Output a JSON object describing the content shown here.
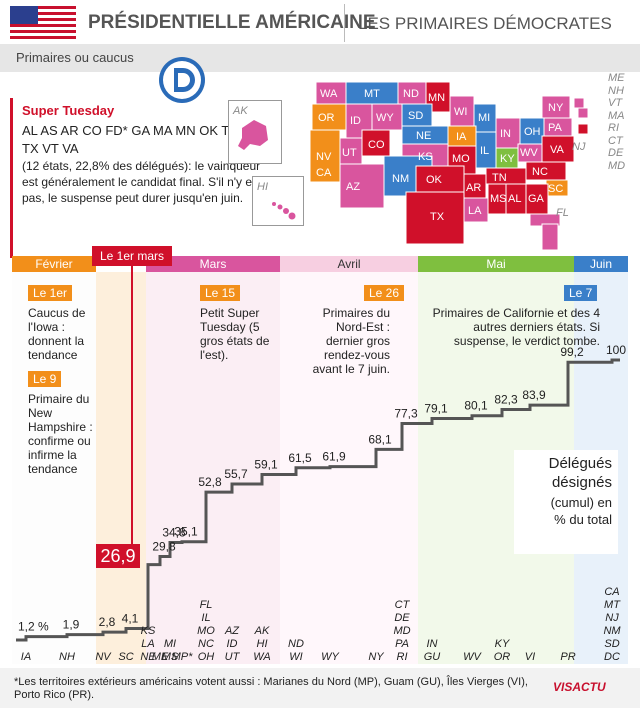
{
  "header": {
    "title": "PRÉSIDENTIELLE AMÉRICAINE",
    "subtitle": "LES PRIMAIRES DÉMOCRATES",
    "subbar": "Primaires ou caucus"
  },
  "super_tuesday": {
    "title": "Super Tuesday",
    "states": "AL AS AR CO FD* GA MA MN OK TN TX VT VA",
    "desc": "(12 états, 22,8% des délégués): le vainqueur est généralement le candidat final. S'il n'y en a pas, le suspense peut durer jusqu'en juin.",
    "date_tag": "Le 1er mars",
    "date_value": "26,9"
  },
  "events": [
    {
      "tag": "Le 1er",
      "text": "Caucus de l'Iowa : donnent la tendance"
    },
    {
      "tag": "Le 9",
      "text": "Primaire du New Hampshire : confirme ou infirme la tendance"
    },
    {
      "tag": "Le 15",
      "text": "Petit Super Tuesday (5 gros états de l'est)."
    },
    {
      "tag": "Le 26",
      "text": "Primaires du Nord-Est : dernier gros rendez-vous avant le 7 juin."
    },
    {
      "tag": "Le 7",
      "text": "Primaires de Californie et des 4 autres derniers états. Si suspense, le verdict tombe."
    }
  ],
  "months": [
    "Février",
    "Mars",
    "Avril",
    "Mai",
    "Juin"
  ],
  "map_labels": {
    "inset_ak": "AK",
    "inset_hi": "HI",
    "east_list": [
      "ME",
      "NH",
      "VT",
      "MA",
      "RI",
      "CT",
      "DE",
      "MD"
    ],
    "fl": "FL",
    "nj": "NJ",
    "states": [
      "WA",
      "MT",
      "ND",
      "MN",
      "OR",
      "ID",
      "WY",
      "SD",
      "WI",
      "MI",
      "NY",
      "NV",
      "UT",
      "CO",
      "NE",
      "IA",
      "IL",
      "OH",
      "PA",
      "CA",
      "AZ",
      "NM",
      "KS",
      "MO",
      "KY",
      "WV",
      "VA",
      "OK",
      "AR",
      "TN",
      "NC",
      "SC",
      "TX",
      "LA",
      "MS",
      "AL",
      "GA",
      "IN"
    ]
  },
  "legend": {
    "title": "Délégués désignés",
    "sub": "(cumul) en % du total"
  },
  "footnote": "*Les territoires extérieurs américains votent aussi : Marianes du Nord (MP), Guam (GU), Îles Vierges (VI), Porto Rico (PR).",
  "brand": "VISACTU",
  "colors": {
    "red": "#d0102a",
    "orange": "#f28f1a",
    "pink": "#d9559e",
    "green": "#7fbf3f",
    "blue": "#3a7fc9",
    "line": "#555555"
  },
  "chart_data": {
    "type": "line",
    "title": "",
    "xlabel": "",
    "ylabel": "",
    "ylim": [
      0,
      100
    ],
    "points": [
      {
        "label": "1,2 %",
        "value": 1.2,
        "states": "IA"
      },
      {
        "label": "1,9",
        "value": 1.9,
        "states": "NH"
      },
      {
        "label": "2,8",
        "value": 2.8,
        "states": "NV"
      },
      {
        "label": "4,1",
        "value": 4.1,
        "states": "SC"
      },
      {
        "label": "26,9",
        "value": 26.9,
        "states": "KS LA NE"
      },
      {
        "label": "29,8",
        "value": 29.8,
        "states": "ME"
      },
      {
        "label": "34,8",
        "value": 34.8,
        "states": "MI MS"
      },
      {
        "label": "35,1",
        "value": 35.1,
        "states": "MP*"
      },
      {
        "label": "52,8",
        "value": 52.8,
        "states": "FL IL MO NC OH"
      },
      {
        "label": "55,7",
        "value": 55.7,
        "states": "AZ ID UT"
      },
      {
        "label": "59,1",
        "value": 59.1,
        "states": "AK HI WA"
      },
      {
        "label": "61,5",
        "value": 61.5,
        "states": "ND WI"
      },
      {
        "label": "61,9",
        "value": 61.9,
        "states": "WY"
      },
      {
        "label": "68,1",
        "value": 68.1,
        "states": "NY"
      },
      {
        "label": "77,3",
        "value": 77.3,
        "states": "CT DE MD PA RI"
      },
      {
        "label": "79,1",
        "value": 79.1,
        "states": "IN GU"
      },
      {
        "label": "80,1",
        "value": 80.1,
        "states": "WV"
      },
      {
        "label": "82,3",
        "value": 82.3,
        "states": "KY OR"
      },
      {
        "label": "83,9",
        "value": 83.9,
        "states": "VI"
      },
      {
        "label": "99,2",
        "value": 99.2,
        "states": "PR"
      },
      {
        "label": "100",
        "value": 100,
        "states": "CA MT NJ NM SD DC"
      }
    ]
  }
}
